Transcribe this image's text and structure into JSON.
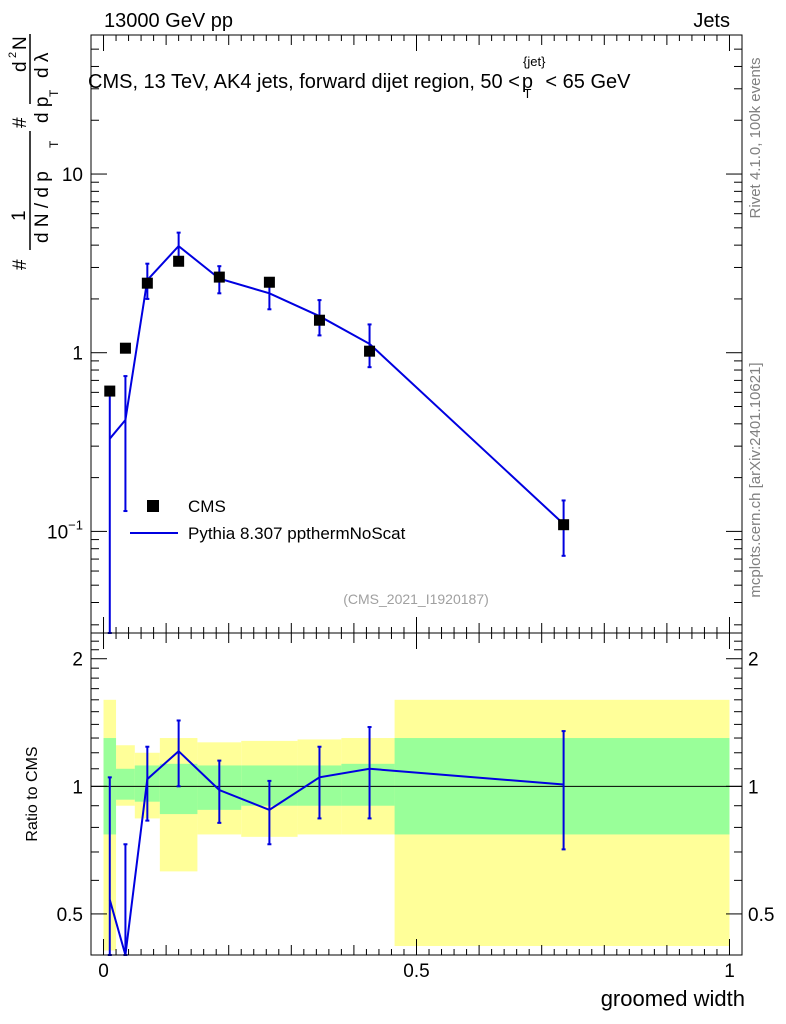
{
  "header": {
    "left": "13000 GeV pp",
    "right": "Jets"
  },
  "side_text": {
    "rivet": "Rivet 4.1.0,  100k events",
    "mcplots": "mcplots.cern.ch [arXiv:2401.10621]"
  },
  "chart_data": [
    {
      "type": "scatter",
      "title": "CMS, 13 TeV, AK4 jets, forward dijet region, 50 < p_T^{jet} < 65 GeV",
      "title_parts": {
        "pre": "CMS, 13 TeV, AK4 jets, forward dijet region, 50 <",
        "p": "p",
        "sup": "{jet}",
        "sub": "T",
        "post": "< 65 GeV"
      },
      "ylabel_parts": [
        "#",
        "1",
        "d N / d p",
        "T",
        "#",
        "d p",
        "T",
        "d",
        "2",
        "N",
        "d λ"
      ],
      "yscale": "log",
      "ylim": [
        0.027,
        60
      ],
      "xlim": [
        -0.02,
        1.02
      ],
      "y_ticks": [
        {
          "value": 0.1,
          "base": "10",
          "exp": "−1"
        },
        {
          "value": 1,
          "label": "1"
        },
        {
          "value": 10,
          "label": "10"
        }
      ],
      "legend": [
        {
          "name": "CMS",
          "style": "marker"
        },
        {
          "name": "Pythia 8.307 ppthermNoScat",
          "style": "line"
        }
      ],
      "watermark": "(CMS_2021_I1920187)",
      "series": [
        {
          "name": "CMS",
          "color": "#000000",
          "points": [
            {
              "x": 0.01,
              "y": 0.61
            },
            {
              "x": 0.035,
              "y": 1.06
            },
            {
              "x": 0.07,
              "y": 2.45
            },
            {
              "x": 0.12,
              "y": 3.25
            },
            {
              "x": 0.185,
              "y": 2.65
            },
            {
              "x": 0.265,
              "y": 2.48
            },
            {
              "x": 0.345,
              "y": 1.52
            },
            {
              "x": 0.425,
              "y": 1.02
            },
            {
              "x": 0.735,
              "y": 0.109
            }
          ]
        },
        {
          "name": "Pythia 8.307 ppthermNoScat",
          "color": "#0000e0",
          "points": [
            {
              "x": 0.01,
              "y": 0.33,
              "lo": 0.005,
              "hi": 0.62
            },
            {
              "x": 0.035,
              "y": 0.42,
              "lo": 0.13,
              "hi": 0.74
            },
            {
              "x": 0.07,
              "y": 2.55,
              "lo": 2.0,
              "hi": 3.15
            },
            {
              "x": 0.12,
              "y": 3.95,
              "lo": 3.3,
              "hi": 4.7
            },
            {
              "x": 0.185,
              "y": 2.6,
              "lo": 2.15,
              "hi": 3.05
            },
            {
              "x": 0.265,
              "y": 2.15,
              "lo": 1.75,
              "hi": 2.5
            },
            {
              "x": 0.345,
              "y": 1.6,
              "lo": 1.25,
              "hi": 1.97
            },
            {
              "x": 0.425,
              "y": 1.12,
              "lo": 0.83,
              "hi": 1.44
            },
            {
              "x": 0.735,
              "y": 0.11,
              "lo": 0.073,
              "hi": 0.149
            }
          ]
        }
      ]
    },
    {
      "type": "line",
      "title": "Ratio to CMS",
      "xlabel": "groomed width",
      "ylabel": "Ratio to CMS",
      "yscale": "log",
      "ylim": [
        0.4,
        2.3
      ],
      "xlim": [
        -0.02,
        1.02
      ],
      "y_ticks": [
        {
          "value": 0.5,
          "label": "0.5"
        },
        {
          "value": 1,
          "label": "1"
        },
        {
          "value": 2,
          "label": "2"
        }
      ],
      "x_ticks": [
        {
          "value": 0,
          "label": "0"
        },
        {
          "value": 0.5,
          "label": "0.5"
        },
        {
          "value": 1,
          "label": "1"
        }
      ],
      "bands": [
        {
          "x0": 0.0,
          "x1": 0.02,
          "green": [
            0.77,
            1.3
          ],
          "yellow": [
            0.41,
            1.6
          ]
        },
        {
          "x0": 0.02,
          "x1": 0.05,
          "green": [
            0.93,
            1.1
          ],
          "yellow": [
            0.9,
            1.25
          ]
        },
        {
          "x0": 0.05,
          "x1": 0.09,
          "green": [
            0.92,
            1.12
          ],
          "yellow": [
            0.84,
            1.2
          ]
        },
        {
          "x0": 0.09,
          "x1": 0.15,
          "green": [
            0.86,
            1.13
          ],
          "yellow": [
            0.63,
            1.3
          ]
        },
        {
          "x0": 0.15,
          "x1": 0.22,
          "green": [
            0.88,
            1.12
          ],
          "yellow": [
            0.77,
            1.27
          ]
        },
        {
          "x0": 0.22,
          "x1": 0.31,
          "green": [
            0.9,
            1.12
          ],
          "yellow": [
            0.76,
            1.28
          ]
        },
        {
          "x0": 0.31,
          "x1": 0.38,
          "green": [
            0.9,
            1.12
          ],
          "yellow": [
            0.77,
            1.29
          ]
        },
        {
          "x0": 0.38,
          "x1": 0.465,
          "green": [
            0.9,
            1.13
          ],
          "yellow": [
            0.77,
            1.3
          ]
        },
        {
          "x0": 0.465,
          "x1": 1.0,
          "green": [
            0.77,
            1.3
          ],
          "yellow": [
            0.42,
            1.6
          ]
        }
      ],
      "series": [
        {
          "name": "Pythia 8.307 ppthermNoScat / CMS",
          "color": "#0000e0",
          "points": [
            {
              "x": 0.01,
              "y": 0.54,
              "lo": 0.34,
              "hi": 1.05
            },
            {
              "x": 0.035,
              "y": 0.39,
              "lo": 0.3,
              "hi": 0.73
            },
            {
              "x": 0.07,
              "y": 1.04,
              "lo": 0.83,
              "hi": 1.24
            },
            {
              "x": 0.12,
              "y": 1.21,
              "lo": 1.0,
              "hi": 1.43
            },
            {
              "x": 0.185,
              "y": 0.98,
              "lo": 0.82,
              "hi": 1.15
            },
            {
              "x": 0.265,
              "y": 0.88,
              "lo": 0.73,
              "hi": 1.03
            },
            {
              "x": 0.345,
              "y": 1.05,
              "lo": 0.84,
              "hi": 1.24
            },
            {
              "x": 0.425,
              "y": 1.1,
              "lo": 0.84,
              "hi": 1.38
            },
            {
              "x": 0.735,
              "y": 1.01,
              "lo": 0.71,
              "hi": 1.35
            }
          ]
        }
      ]
    }
  ]
}
